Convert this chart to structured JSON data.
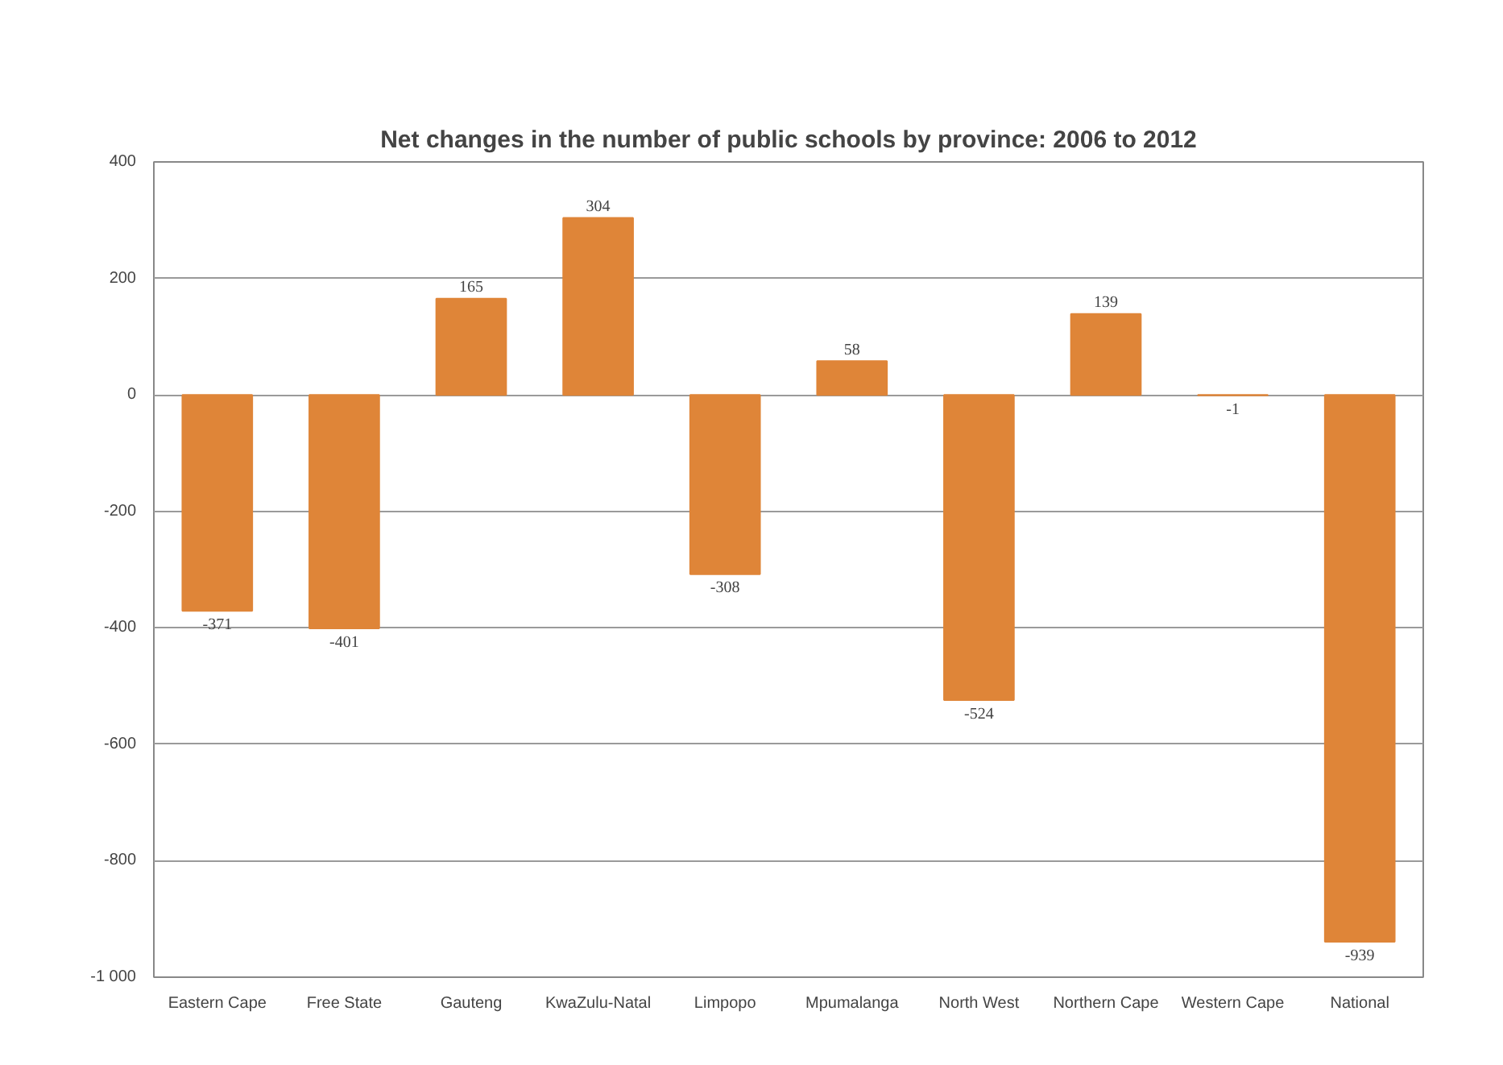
{
  "chart_data": {
    "type": "bar",
    "title": "Net changes in the number of public schools by province: 2006 to 2012",
    "categories": [
      "Eastern Cape",
      "Free State",
      "Gauteng",
      "KwaZulu-Natal",
      "Limpopo",
      "Mpumalanga",
      "North West",
      "Northern Cape",
      "Western Cape",
      "National"
    ],
    "values": [
      -371,
      -401,
      165,
      304,
      -308,
      58,
      -524,
      139,
      -1,
      -939
    ],
    "color": "#df8538",
    "ylim": [
      -1000,
      400
    ],
    "yticks": [
      {
        "value": -1000,
        "label": "-1 000"
      },
      -800,
      -600,
      -400,
      -200,
      0,
      200,
      400
    ],
    "grid": "y",
    "data_labels": true
  }
}
